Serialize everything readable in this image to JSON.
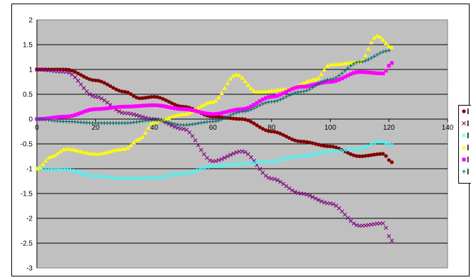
{
  "chart_data": {
    "type": "scatter",
    "title": "",
    "xlabel": "",
    "ylabel": "",
    "xlim": [
      0,
      140
    ],
    "ylim": [
      -3,
      2
    ],
    "xticks": [
      0,
      20,
      40,
      60,
      80,
      100,
      120,
      140
    ],
    "yticks": [
      -3,
      -2.5,
      -2,
      -1.5,
      -1,
      -0.5,
      0,
      0.5,
      1,
      1.5,
      2
    ],
    "grid": "horizontal major gridlines",
    "plot_background": "#c0c0c0",
    "legend_placement": "right",
    "x_step": 1,
    "series": [
      {
        "color": "#800000",
        "marker": "circle",
        "anchors": [
          [
            0,
            1
          ],
          [
            10,
            1
          ],
          [
            20,
            0.78
          ],
          [
            30,
            0.55
          ],
          [
            35,
            0.42
          ],
          [
            40,
            0.45
          ],
          [
            50,
            0.25
          ],
          [
            60,
            0.05
          ],
          [
            70,
            0
          ],
          [
            80,
            -0.25
          ],
          [
            90,
            -0.45
          ],
          [
            100,
            -0.55
          ],
          [
            110,
            -0.75
          ],
          [
            118,
            -0.7
          ],
          [
            121,
            -0.87
          ]
        ]
      },
      {
        "color": "#800080",
        "marker": "x",
        "anchors": [
          [
            0,
            1
          ],
          [
            10,
            0.95
          ],
          [
            20,
            0.45
          ],
          [
            30,
            0.12
          ],
          [
            40,
            0
          ],
          [
            50,
            -0.2
          ],
          [
            60,
            -0.85
          ],
          [
            70,
            -0.65
          ],
          [
            80,
            -1.2
          ],
          [
            90,
            -1.5
          ],
          [
            100,
            -1.7
          ],
          [
            110,
            -2.15
          ],
          [
            118,
            -2.1
          ],
          [
            121,
            -2.45
          ]
        ]
      },
      {
        "color": "#33ffff",
        "marker": "x",
        "anchors": [
          [
            0,
            -1
          ],
          [
            10,
            -1.02
          ],
          [
            20,
            -1.15
          ],
          [
            30,
            -1.2
          ],
          [
            40,
            -1.18
          ],
          [
            50,
            -1.1
          ],
          [
            60,
            -0.95
          ],
          [
            70,
            -0.9
          ],
          [
            80,
            -0.85
          ],
          [
            90,
            -0.75
          ],
          [
            100,
            -0.65
          ],
          [
            110,
            -0.6
          ],
          [
            117,
            -0.45
          ],
          [
            121,
            -0.52
          ]
        ]
      },
      {
        "color": "#ffff00",
        "marker": "triangle",
        "anchors": [
          [
            0,
            -1
          ],
          [
            5,
            -0.75
          ],
          [
            10,
            -0.6
          ],
          [
            20,
            -0.7
          ],
          [
            30,
            -0.6
          ],
          [
            35,
            -0.4
          ],
          [
            40,
            -0.05
          ],
          [
            50,
            0.1
          ],
          [
            60,
            0.35
          ],
          [
            68,
            0.9
          ],
          [
            75,
            0.55
          ],
          [
            85,
            0.6
          ],
          [
            95,
            0.8
          ],
          [
            100,
            1.1
          ],
          [
            110,
            1.15
          ],
          [
            116,
            1.68
          ],
          [
            121,
            1.45
          ]
        ]
      },
      {
        "color": "#ff00ff",
        "marker": "square",
        "anchors": [
          [
            0,
            0
          ],
          [
            10,
            0.05
          ],
          [
            20,
            0.2
          ],
          [
            30,
            0.25
          ],
          [
            40,
            0.28
          ],
          [
            50,
            0.2
          ],
          [
            60,
            0.1
          ],
          [
            70,
            0.2
          ],
          [
            80,
            0.45
          ],
          [
            90,
            0.65
          ],
          [
            100,
            0.75
          ],
          [
            110,
            0.95
          ],
          [
            118,
            0.92
          ],
          [
            121,
            1.13
          ]
        ]
      },
      {
        "color": "#006666",
        "marker": "plus",
        "anchors": [
          [
            0,
            0
          ],
          [
            10,
            -0.05
          ],
          [
            20,
            -0.08
          ],
          [
            30,
            -0.08
          ],
          [
            40,
            -0.02
          ],
          [
            50,
            -0.12
          ],
          [
            60,
            -0.05
          ],
          [
            70,
            0.15
          ],
          [
            80,
            0.35
          ],
          [
            90,
            0.55
          ],
          [
            100,
            0.8
          ],
          [
            110,
            1.15
          ],
          [
            120,
            1.38
          ]
        ]
      }
    ]
  }
}
